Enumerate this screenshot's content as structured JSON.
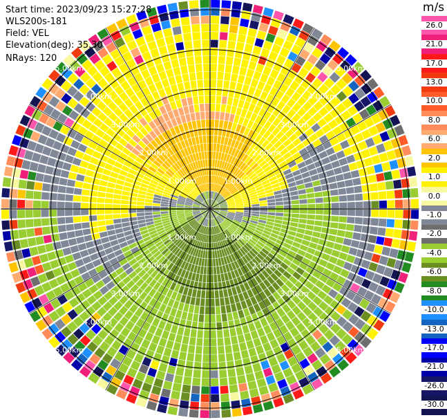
{
  "info": {
    "start_time": "Start time: 2023/09/23 15:27:28",
    "instrument": "WLS200s-181",
    "field": "Field: VEL",
    "elevation": "Elevation(deg): 35.30",
    "nrays": "NRays: 120"
  },
  "colorbar": {
    "unit": "m/s",
    "ticks": [
      "26.0",
      "21.0",
      "17.0",
      "13.0",
      "10.0",
      "8.0",
      "6.0",
      "2.0",
      "1.0",
      "0.0",
      "-1.0",
      "-2.0",
      "-4.0",
      "-6.0",
      "-8.0",
      "-10.0",
      "-13.0",
      "-17.0",
      "-21.0",
      "-26.0",
      "-30.0"
    ],
    "colors": [
      "#ff55aa",
      "#f0207a",
      "#ff1a1a",
      "#f23a10",
      "#ff5c2a",
      "#ff8c5a",
      "#ffaa70",
      "#ffc400",
      "#fff200",
      "#f8f8a0",
      "#808898",
      "#6e6e6e",
      "#9acd32",
      "#6b8e23",
      "#228b22",
      "#1e90ff",
      "#1565c0",
      "#0000ff",
      "#0000a8",
      "#161666",
      "#141452"
    ]
  },
  "chart_data": {
    "type": "heatmap",
    "projection": "polar PPI",
    "field": "VEL",
    "units": "m/s",
    "nrays": 120,
    "range_rings_km": [
      1.0,
      2.0,
      3.0,
      4.0,
      5.0
    ],
    "range_ring_labels": [
      "1.00km",
      "2.00km",
      "3.00km",
      "4.00km",
      "5.00km"
    ],
    "value_range": [
      -30.0,
      26.0
    ],
    "noise_beyond_km": 5.0
  }
}
